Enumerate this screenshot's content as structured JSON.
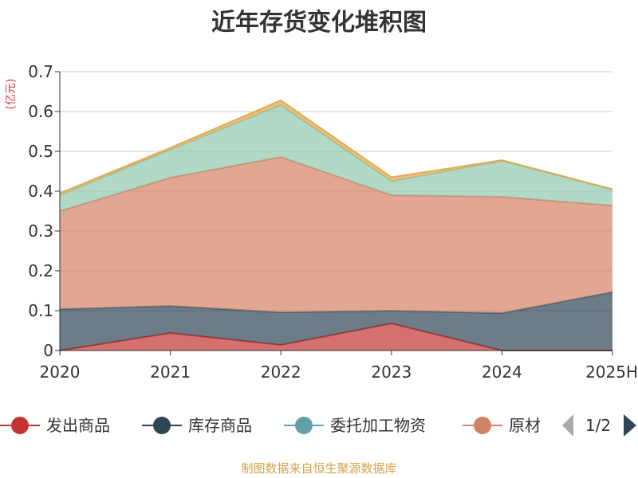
{
  "chart_data": {
    "type": "area",
    "stacked": true,
    "title": "近年存货变化堆积图",
    "ylabel": "(亿元)",
    "ylim": [
      0,
      0.7
    ],
    "y_ticks": [
      "0",
      "0.1",
      "0.2",
      "0.3",
      "0.4",
      "0.5",
      "0.6",
      "0.7"
    ],
    "categories": [
      "2020",
      "2021",
      "2022",
      "2023",
      "2024",
      "2025H"
    ],
    "grid": true,
    "legend_position": "bottom",
    "series": [
      {
        "name": "发出商品",
        "color": "#c23531",
        "values": [
          0.0,
          0.044,
          0.014,
          0.068,
          0.0,
          0.0
        ]
      },
      {
        "name": "库存商品",
        "color": "#2f4554",
        "values": [
          0.104,
          0.068,
          0.082,
          0.032,
          0.094,
          0.147
        ]
      },
      {
        "name": "委托加工物资",
        "color": "#61a0a8",
        "values": [
          0.0,
          0.0,
          0.0,
          0.0,
          0.0,
          0.0
        ]
      },
      {
        "name": "原材料",
        "color": "#d48265",
        "values": [
          0.246,
          0.322,
          0.39,
          0.29,
          0.292,
          0.217
        ]
      },
      {
        "name": "",
        "color": "#91c7ae",
        "values": [
          0.04,
          0.07,
          0.13,
          0.035,
          0.09,
          0.04
        ]
      },
      {
        "name": "",
        "color": "#e0a64a",
        "values": [
          0.005,
          0.005,
          0.012,
          0.01,
          0.002,
          0.001
        ]
      }
    ]
  },
  "legend": {
    "visible_items": [
      "发出商品",
      "库存商品",
      "委托加工物资",
      "原材"
    ],
    "page_indicator": "1/2"
  },
  "footer": {
    "source": "制图数据来自恒生聚源数据库"
  }
}
